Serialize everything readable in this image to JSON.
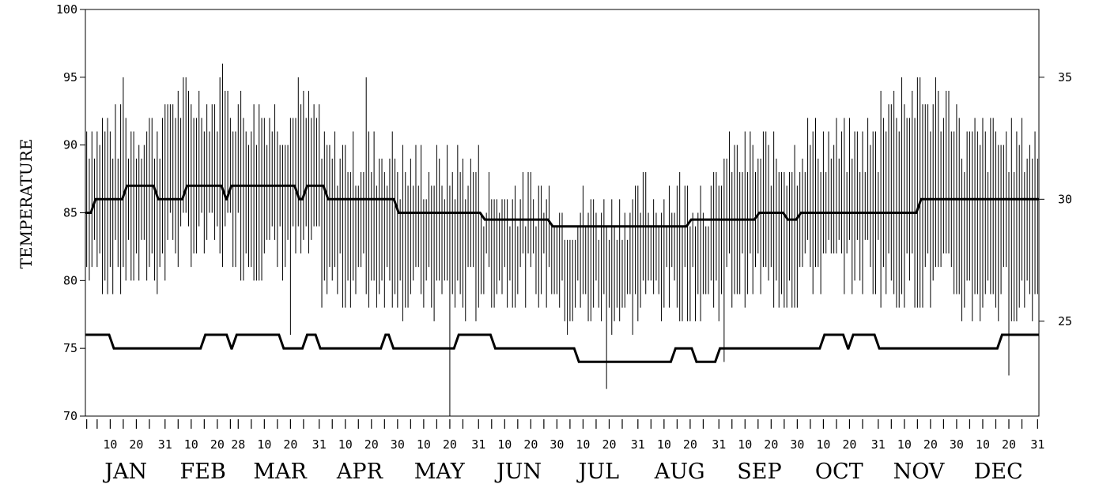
{
  "chart_data": {
    "type": "line",
    "ylabel": "TEMPERATURE",
    "ylim": [
      70,
      100
    ],
    "yticks": [
      "70",
      "75",
      "80",
      "85",
      "90",
      "95",
      "100"
    ],
    "y2ticks": [
      "25",
      "30",
      "35"
    ],
    "y2_scale": {
      "unit": "celsius",
      "from": "fahrenheit"
    },
    "day_tick_labels": [
      "10",
      "20",
      "31",
      "10",
      "20",
      "28",
      "10",
      "20",
      "31",
      "10",
      "20",
      "30",
      "10",
      "20",
      "31",
      "10",
      "20",
      "30",
      "10",
      "20",
      "31",
      "10",
      "20",
      "31",
      "10",
      "20",
      "30",
      "10",
      "20",
      "31",
      "10",
      "20",
      "30",
      "10",
      "20",
      "31"
    ],
    "months": [
      "JAN",
      "FEB",
      "MAR",
      "APR",
      "MAY",
      "JUN",
      "JUL",
      "AUG",
      "SEP",
      "OCT",
      "NOV",
      "DEC"
    ],
    "month_days": [
      31,
      28,
      31,
      30,
      31,
      30,
      31,
      31,
      30,
      31,
      30,
      31
    ],
    "grid": false,
    "daily_range_series": {
      "name": "",
      "style": "vertical bars (daily low to daily high)",
      "monthly_typical_high": [
        91,
        93,
        92,
        89,
        88,
        86,
        85,
        86,
        89,
        90,
        93,
        90
      ],
      "monthly_typical_low": [
        81,
        83,
        82,
        80,
        79,
        80,
        78,
        79,
        80,
        81,
        80,
        79
      ],
      "extremes": [
        {
          "day": 15,
          "high": 95
        },
        {
          "day": 53,
          "high": 96
        },
        {
          "day": 79,
          "low": 76
        },
        {
          "day": 82,
          "high": 95
        },
        {
          "day": 108,
          "high": 95
        },
        {
          "day": 140,
          "low": 70
        },
        {
          "day": 200,
          "low": 72
        },
        {
          "day": 245,
          "low": 74
        },
        {
          "day": 313,
          "high": 95
        },
        {
          "day": 354,
          "low": 73
        }
      ]
    },
    "series": [
      {
        "name": "",
        "step_segments": [
          {
            "start": 1,
            "end": 3,
            "value": 85
          },
          {
            "start": 4,
            "end": 15,
            "value": 86
          },
          {
            "start": 16,
            "end": 27,
            "value": 87
          },
          {
            "start": 28,
            "end": 38,
            "value": 86
          },
          {
            "start": 39,
            "end": 53,
            "value": 87
          },
          {
            "start": 54,
            "end": 55,
            "value": 86
          },
          {
            "start": 56,
            "end": 81,
            "value": 87
          },
          {
            "start": 82,
            "end": 84,
            "value": 86
          },
          {
            "start": 85,
            "end": 92,
            "value": 87
          },
          {
            "start": 93,
            "end": 119,
            "value": 86
          },
          {
            "start": 120,
            "end": 152,
            "value": 85
          },
          {
            "start": 153,
            "end": 178,
            "value": 84.5
          },
          {
            "start": 179,
            "end": 231,
            "value": 84
          },
          {
            "start": 232,
            "end": 257,
            "value": 84.5
          },
          {
            "start": 258,
            "end": 268,
            "value": 85
          },
          {
            "start": 269,
            "end": 273,
            "value": 84.5
          },
          {
            "start": 274,
            "end": 319,
            "value": 85
          },
          {
            "start": 320,
            "end": 365,
            "value": 86
          }
        ]
      },
      {
        "name": "",
        "step_segments": [
          {
            "start": 1,
            "end": 10,
            "value": 76
          },
          {
            "start": 11,
            "end": 45,
            "value": 75
          },
          {
            "start": 46,
            "end": 55,
            "value": 76
          },
          {
            "start": 56,
            "end": 57,
            "value": 75
          },
          {
            "start": 58,
            "end": 75,
            "value": 76
          },
          {
            "start": 76,
            "end": 84,
            "value": 75
          },
          {
            "start": 85,
            "end": 89,
            "value": 76
          },
          {
            "start": 90,
            "end": 114,
            "value": 75
          },
          {
            "start": 115,
            "end": 117,
            "value": 76
          },
          {
            "start": 118,
            "end": 142,
            "value": 75
          },
          {
            "start": 143,
            "end": 156,
            "value": 76
          },
          {
            "start": 157,
            "end": 188,
            "value": 75
          },
          {
            "start": 189,
            "end": 225,
            "value": 74
          },
          {
            "start": 226,
            "end": 233,
            "value": 75
          },
          {
            "start": 234,
            "end": 242,
            "value": 74
          },
          {
            "start": 243,
            "end": 282,
            "value": 75
          },
          {
            "start": 283,
            "end": 291,
            "value": 76
          },
          {
            "start": 292,
            "end": 293,
            "value": 75
          },
          {
            "start": 294,
            "end": 303,
            "value": 76
          },
          {
            "start": 304,
            "end": 350,
            "value": 75
          },
          {
            "start": 351,
            "end": 365,
            "value": 76
          }
        ]
      }
    ]
  }
}
